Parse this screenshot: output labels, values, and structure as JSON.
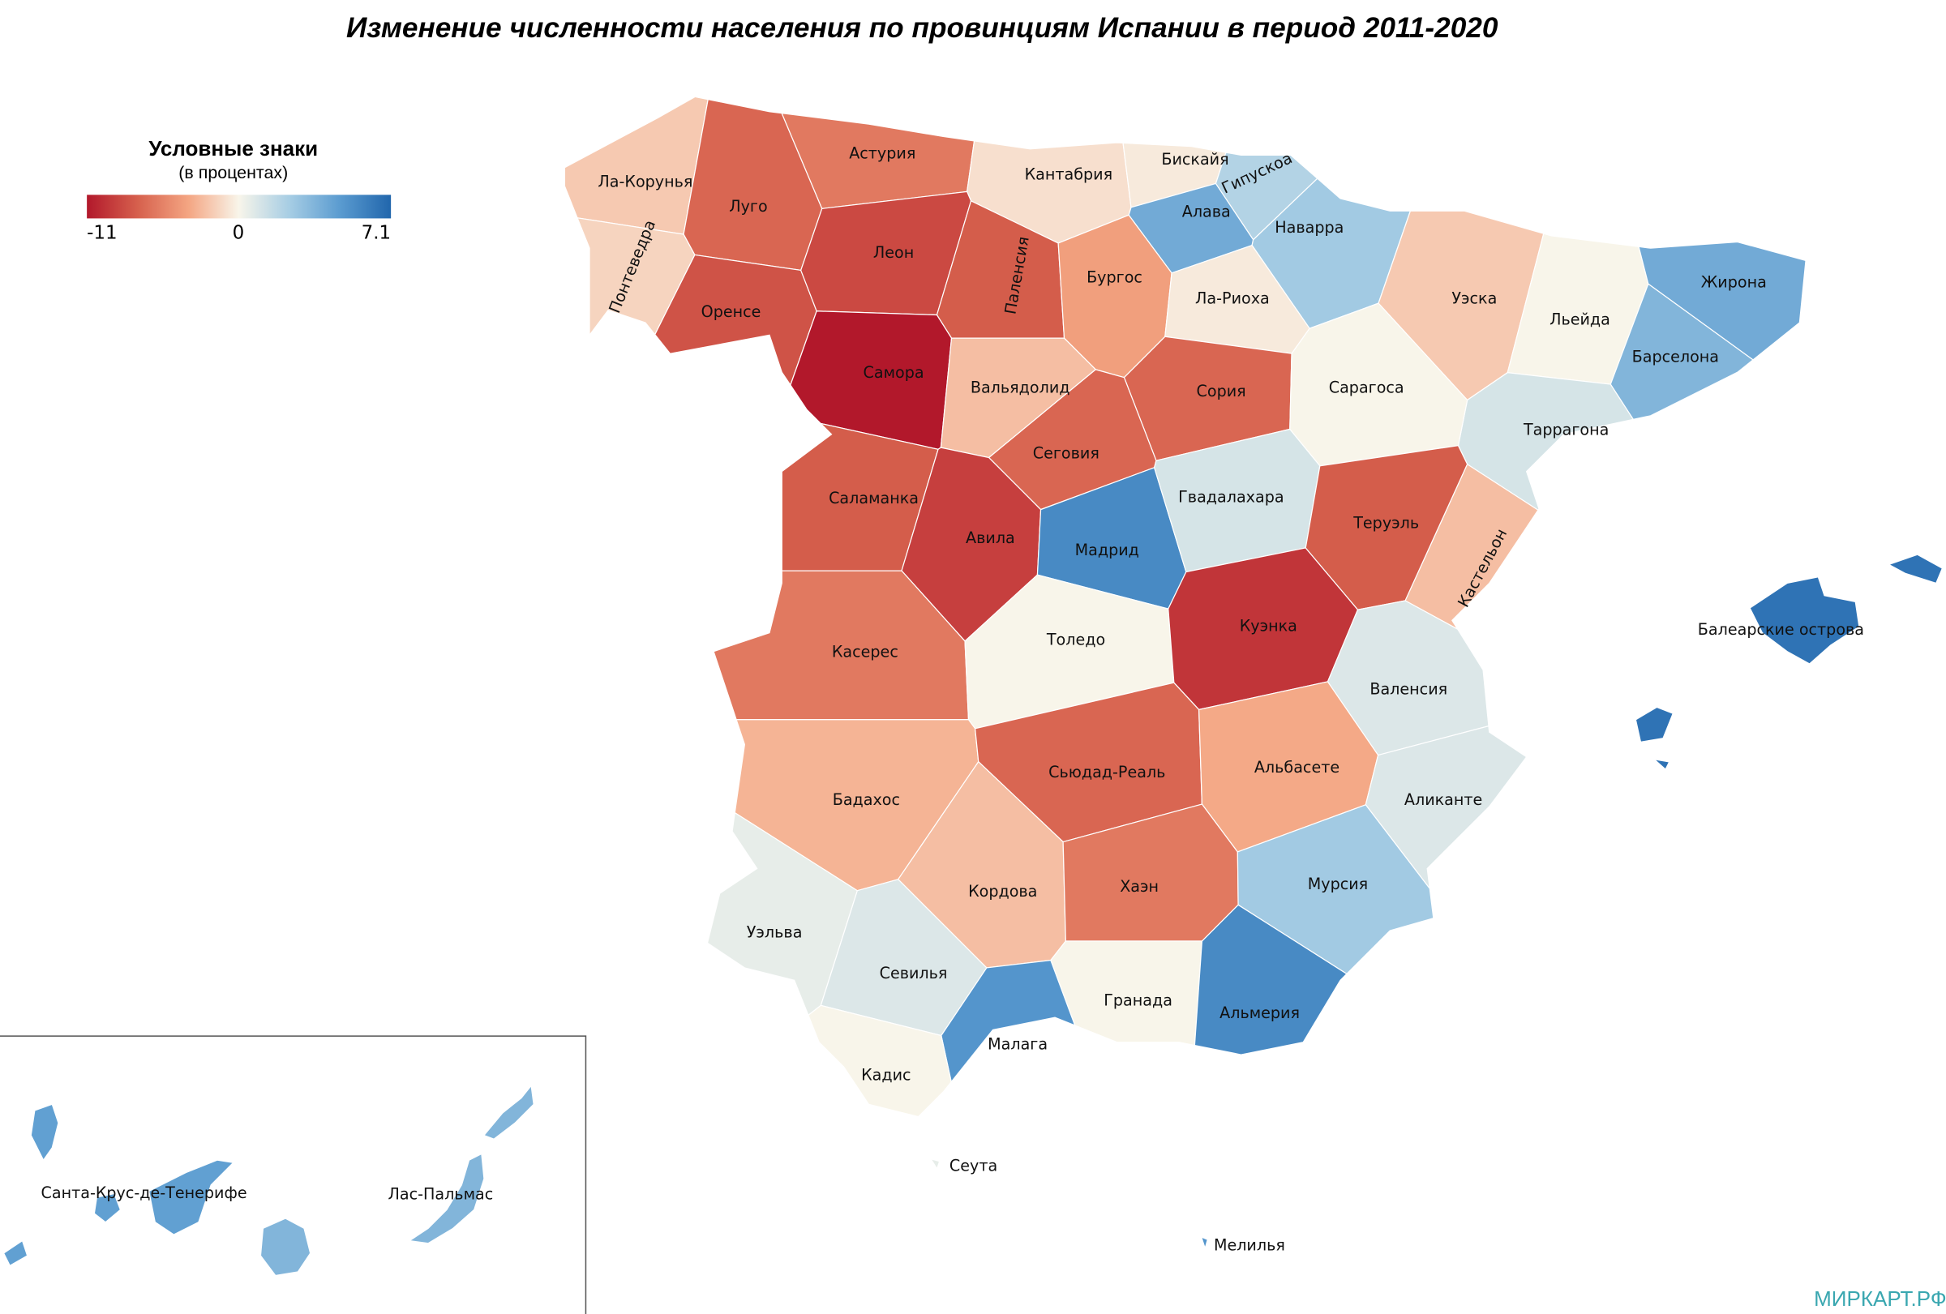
{
  "title": "Изменение численности населения по провинциям Испании в период 2011-2020",
  "legend": {
    "title": "Условные знаки",
    "subtitle": "(в процентах)",
    "min": -11,
    "mid": 0,
    "max": 7.1,
    "colors": [
      "#b2182b",
      "#d6604d",
      "#f4a582",
      "#f8f5ea",
      "#a6cde4",
      "#5a9bd0",
      "#2166ac"
    ]
  },
  "regions": [
    {
      "name": "Ла-Корунья",
      "value": -2
    },
    {
      "name": "Луго",
      "value": -7
    },
    {
      "name": "Понтеведра",
      "value": -1.5
    },
    {
      "name": "Оренсе",
      "value": -8
    },
    {
      "name": "Астурия",
      "value": -6
    },
    {
      "name": "Кантабрия",
      "value": -1
    },
    {
      "name": "Бискайя",
      "value": -0.5
    },
    {
      "name": "Гипускоа",
      "value": 2
    },
    {
      "name": "Алава",
      "value": 4
    },
    {
      "name": "Наварра",
      "value": 2.5
    },
    {
      "name": "Леон",
      "value": -8.5
    },
    {
      "name": "Паленсия",
      "value": -7.5
    },
    {
      "name": "Бургос",
      "value": -4
    },
    {
      "name": "Ла-Риоха",
      "value": -0.5
    },
    {
      "name": "Уэска",
      "value": -2
    },
    {
      "name": "Льейда",
      "value": 0
    },
    {
      "name": "Жирона",
      "value": 4
    },
    {
      "name": "Барселона",
      "value": 3.5
    },
    {
      "name": "Таррагона",
      "value": 1
    },
    {
      "name": "Самора",
      "value": -11
    },
    {
      "name": "Вальядолид",
      "value": -2.5
    },
    {
      "name": "Сория",
      "value": -7
    },
    {
      "name": "Сарагоса",
      "value": 0
    },
    {
      "name": "Сеговия",
      "value": -7
    },
    {
      "name": "Саламанка",
      "value": -7.5
    },
    {
      "name": "Авила",
      "value": -9
    },
    {
      "name": "Мадрид",
      "value": 5.5
    },
    {
      "name": "Гвадалахара",
      "value": 1
    },
    {
      "name": "Теруэль",
      "value": -7.5
    },
    {
      "name": "Кастельон",
      "value": -2.5
    },
    {
      "name": "Касерес",
      "value": -6
    },
    {
      "name": "Толедо",
      "value": 0
    },
    {
      "name": "Куэнка",
      "value": -9.5
    },
    {
      "name": "Валенсия",
      "value": 0.8
    },
    {
      "name": "Бадахос",
      "value": -3
    },
    {
      "name": "Сьюдад-Реаль",
      "value": -7
    },
    {
      "name": "Альбасете",
      "value": -3.5
    },
    {
      "name": "Аликанте",
      "value": 0.8
    },
    {
      "name": "Кордова",
      "value": -2.5
    },
    {
      "name": "Хаэн",
      "value": -6
    },
    {
      "name": "Мурсия",
      "value": 2.5
    },
    {
      "name": "Уэльва",
      "value": 0.5
    },
    {
      "name": "Севилья",
      "value": 0.8
    },
    {
      "name": "Гранада",
      "value": 0
    },
    {
      "name": "Альмерия",
      "value": 5.5
    },
    {
      "name": "Малага",
      "value": 5
    },
    {
      "name": "Кадис",
      "value": 0
    },
    {
      "name": "Балеарские острова",
      "value": 6.5
    },
    {
      "name": "Санта-Крус-де-Тенерифе",
      "value": 4.5
    },
    {
      "name": "Лас-Пальмас",
      "value": 3.5
    },
    {
      "name": "Сеута",
      "value": 0.5
    },
    {
      "name": "Мелилья",
      "value": 5
    }
  ],
  "watermark": "МИРКАРТ.РФ"
}
